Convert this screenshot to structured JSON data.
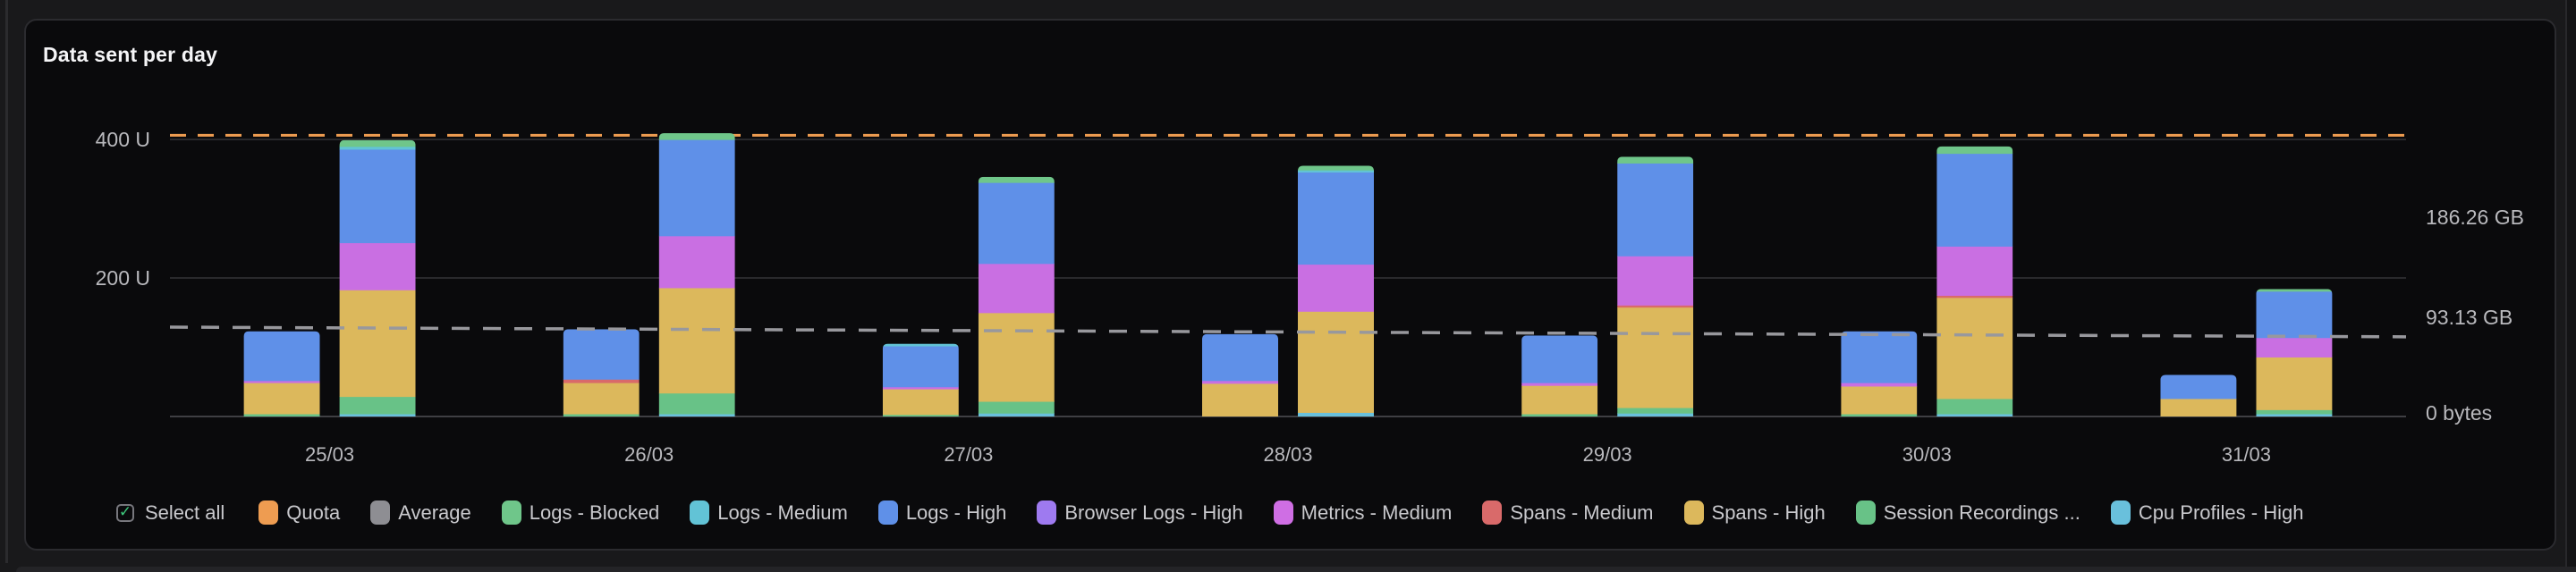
{
  "page": {
    "title": "Data sent per day"
  },
  "legend": {
    "select_all": "Select all",
    "items": [
      {
        "label": "Quota",
        "color": "#ee9c51"
      },
      {
        "label": "Average",
        "color": "#8e8e93"
      },
      {
        "label": "Logs - Blocked",
        "color": "#6fc68a"
      },
      {
        "label": "Logs - Medium",
        "color": "#62c3d6"
      },
      {
        "label": "Logs - High",
        "color": "#5f90e8"
      },
      {
        "label": "Browser Logs - High",
        "color": "#9e7af0"
      },
      {
        "label": "Metrics - Medium",
        "color": "#cf6ee4"
      },
      {
        "label": "Spans - Medium",
        "color": "#d96a6a"
      },
      {
        "label": "Spans - High",
        "color": "#dcb85c"
      },
      {
        "label": "Session Recordings ...",
        "color": "#68c287"
      },
      {
        "label": "Cpu Profiles - High",
        "color": "#69c0dc"
      }
    ]
  },
  "chart_data": {
    "type": "bar",
    "variant": "grouped-stacked",
    "title": "Data sent per day",
    "categories": [
      "25/03",
      "26/03",
      "27/03",
      "28/03",
      "29/03",
      "30/03",
      "31/03"
    ],
    "unit": "U",
    "ylim": [
      0,
      420
    ],
    "grid": "horizontal",
    "left_axis_ticks": [
      {
        "value": 400,
        "label": "400 U"
      },
      {
        "value": 200,
        "label": "200 U"
      }
    ],
    "right_axis_ticks": [
      "186.26 GB",
      "93.13 GB",
      "0 bytes"
    ],
    "quota_line": {
      "label": "Quota",
      "value": 406,
      "color": "#ee9c51",
      "style": "dashed"
    },
    "average_line": {
      "label": "Average",
      "value_start": 129,
      "value_end": 115,
      "color": "#98989d",
      "style": "dashed"
    },
    "series": [
      {
        "name": "Cpu Profiles - High",
        "color": "#69c0dc",
        "small": [
          0,
          0,
          0,
          0,
          0,
          0,
          0
        ],
        "large": [
          4,
          4,
          5,
          6,
          5,
          4,
          4
        ]
      },
      {
        "name": "Session Recordings ...",
        "color": "#68c287",
        "small": [
          4,
          4,
          3,
          0,
          4,
          4,
          0
        ],
        "large": [
          25,
          30,
          17,
          0,
          8,
          22,
          6
        ]
      },
      {
        "name": "Spans - High",
        "color": "#dcb85c",
        "small": [
          45,
          45,
          37,
          48,
          41,
          40,
          26
        ],
        "large": [
          154,
          152,
          128,
          146,
          145,
          146,
          76
        ]
      },
      {
        "name": "Spans - Medium",
        "color": "#d96a6a",
        "small": [
          0,
          5,
          0,
          0,
          0,
          0,
          0
        ],
        "large": [
          0,
          0,
          0,
          0,
          3,
          3,
          0
        ]
      },
      {
        "name": "Metrics - Medium",
        "color": "#c96fe2",
        "small": [
          3,
          0,
          3,
          4,
          4,
          5,
          0
        ],
        "large": [
          68,
          75,
          71,
          68,
          71,
          71,
          28
        ]
      },
      {
        "name": "Browser Logs - High",
        "color": "#9e7af0",
        "small": [
          0,
          0,
          0,
          0,
          0,
          0,
          0
        ],
        "large": [
          0,
          0,
          0,
          0,
          0,
          0,
          0
        ]
      },
      {
        "name": "Logs - High",
        "color": "#5f90e8",
        "small": [
          71,
          72,
          59,
          67,
          68,
          74,
          34
        ],
        "large": [
          135,
          139,
          117,
          133,
          134,
          134,
          67
        ]
      },
      {
        "name": "Logs - Medium",
        "color": "#62c3d6",
        "small": [
          0,
          0,
          3,
          0,
          0,
          0,
          0
        ],
        "large": [
          4,
          0,
          0,
          3,
          0,
          0,
          0
        ]
      },
      {
        "name": "Logs - Blocked",
        "color": "#6fc68a",
        "small": [
          0,
          0,
          0,
          0,
          0,
          0,
          0
        ],
        "large": [
          9,
          9,
          8,
          6,
          9,
          10,
          3
        ]
      }
    ]
  }
}
